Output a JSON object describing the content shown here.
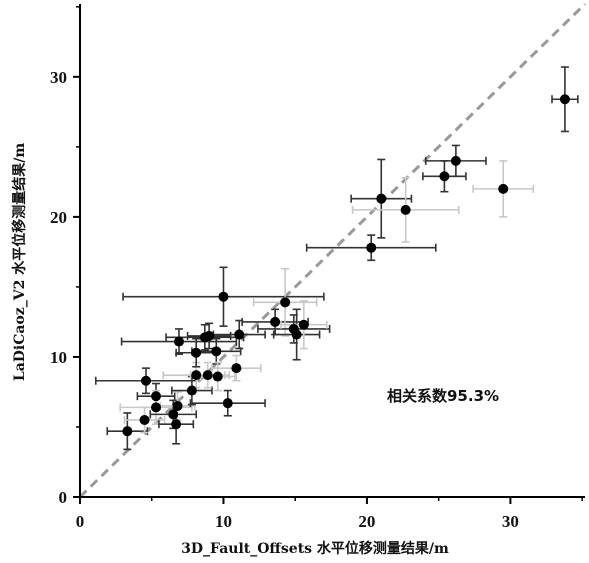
{
  "chart_data": {
    "type": "scatter",
    "xlabel": "3D_Fault_Offsets 水平位移测量结果/m",
    "ylabel": "LaDiCaoz_V2 水平位移测量结果/m",
    "annotation": "相关系数95.3%",
    "xlim": [
      0,
      35.2
    ],
    "ylim": [
      0,
      35.2
    ],
    "x_ticks": [
      0,
      10,
      20,
      30
    ],
    "y_ticks": [
      0,
      10,
      20,
      30
    ],
    "x_tick_labels": [
      "0",
      "10",
      "20",
      "30"
    ],
    "y_tick_labels": [
      "0",
      "10",
      "20",
      "30"
    ],
    "reference_line": "y = x",
    "colors": {
      "points": "#000000",
      "reference_line": "#999999",
      "error_dark": "#333333",
      "error_light": "#c8c8c8"
    },
    "points": [
      {
        "x": 3.3,
        "y": 4.7,
        "xerr": 1.4,
        "yerr": 1.3
      },
      {
        "x": 4.5,
        "y": 5.5,
        "xerr": 1.4,
        "yerr": 0.9
      },
      {
        "x": 4.6,
        "y": 8.3,
        "xerr": 3.5,
        "yerr": 0.9
      },
      {
        "x": 5.3,
        "y": 7.2,
        "xerr": 1.3,
        "yerr": 0.9
      },
      {
        "x": 5.3,
        "y": 6.4,
        "xerr": 2.5,
        "yerr": 1.2
      },
      {
        "x": 6.5,
        "y": 5.9,
        "xerr": 1.6,
        "yerr": 1.0
      },
      {
        "x": 6.7,
        "y": 5.2,
        "xerr": 1.2,
        "yerr": 1.4
      },
      {
        "x": 6.8,
        "y": 6.5,
        "xerr": 1.2,
        "yerr": 1.0
      },
      {
        "x": 6.9,
        "y": 11.1,
        "xerr": 4.0,
        "yerr": 0.9
      },
      {
        "x": 7.8,
        "y": 7.6,
        "xerr": 1.4,
        "yerr": 1.0
      },
      {
        "x": 8.1,
        "y": 8.7,
        "xerr": 2.3,
        "yerr": 0.9
      },
      {
        "x": 8.1,
        "y": 10.3,
        "xerr": 1.4,
        "yerr": 1.0
      },
      {
        "x": 8.7,
        "y": 11.4,
        "xerr": 2.7,
        "yerr": 0.9
      },
      {
        "x": 8.9,
        "y": 8.7,
        "xerr": 1.2,
        "yerr": 0.9
      },
      {
        "x": 9.0,
        "y": 11.5,
        "xerr": 1.5,
        "yerr": 0.9
      },
      {
        "x": 9.5,
        "y": 10.4,
        "xerr": 1.7,
        "yerr": 0.9
      },
      {
        "x": 9.6,
        "y": 8.6,
        "xerr": 1.2,
        "yerr": 1.0
      },
      {
        "x": 10.0,
        "y": 14.3,
        "xerr": 7.0,
        "yerr": 2.1
      },
      {
        "x": 10.3,
        "y": 6.7,
        "xerr": 2.6,
        "yerr": 0.9
      },
      {
        "x": 10.9,
        "y": 9.2,
        "xerr": 1.7,
        "yerr": 0.9
      },
      {
        "x": 11.1,
        "y": 11.6,
        "xerr": 1.8,
        "yerr": 1.0
      },
      {
        "x": 13.6,
        "y": 12.5,
        "xerr": 2.3,
        "yerr": 0.9
      },
      {
        "x": 14.3,
        "y": 13.9,
        "xerr": 2.2,
        "yerr": 2.4
      },
      {
        "x": 14.9,
        "y": 12.0,
        "xerr": 2.5,
        "yerr": 1.0
      },
      {
        "x": 15.1,
        "y": 11.6,
        "xerr": 1.6,
        "yerr": 1.8
      },
      {
        "x": 15.6,
        "y": 12.3,
        "xerr": 1.6,
        "yerr": 1.7
      },
      {
        "x": 20.3,
        "y": 17.8,
        "xerr": 4.5,
        "yerr": 0.9
      },
      {
        "x": 21.0,
        "y": 21.3,
        "xerr": 2.1,
        "yerr": 2.8
      },
      {
        "x": 22.7,
        "y": 20.5,
        "xerr": 3.7,
        "yerr": 2.3
      },
      {
        "x": 25.4,
        "y": 22.9,
        "xerr": 1.5,
        "yerr": 1.1
      },
      {
        "x": 26.2,
        "y": 24.0,
        "xerr": 2.1,
        "yerr": 1.1
      },
      {
        "x": 29.5,
        "y": 22.0,
        "xerr": 2.1,
        "yerr": 2.0
      },
      {
        "x": 33.8,
        "y": 28.4,
        "xerr": 0.9,
        "yerr": 2.3
      }
    ]
  }
}
